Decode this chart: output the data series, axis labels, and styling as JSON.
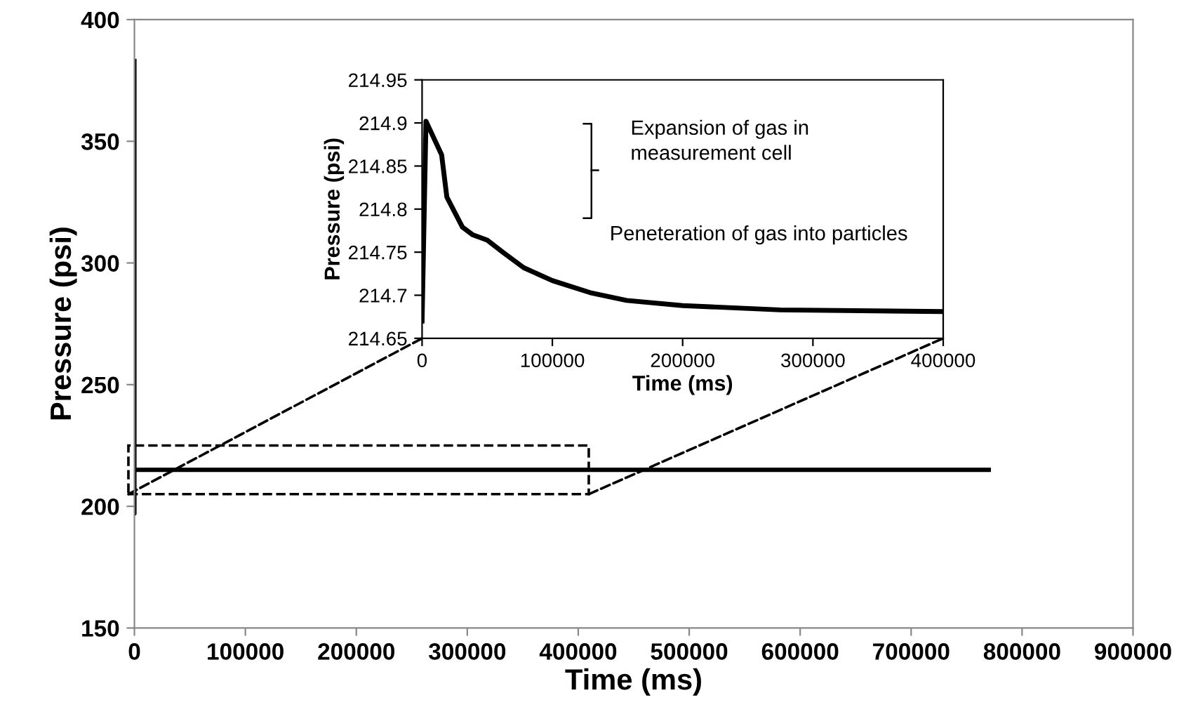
{
  "chart_data": [
    {
      "type": "line",
      "xlabel": "Time (ms)",
      "ylabel": "Pressure (psi)",
      "xlim": [
        0,
        900000
      ],
      "ylim": [
        150,
        400
      ],
      "xticks": [
        0,
        100000,
        200000,
        300000,
        400000,
        500000,
        600000,
        700000,
        800000,
        900000
      ],
      "yticks": [
        150,
        200,
        250,
        300,
        350,
        400
      ],
      "grid": false,
      "legend": false,
      "series": [
        {
          "color": "#000000",
          "x": [
            0,
            0,
            0,
            2000,
            770000
          ],
          "values": [
            383,
            197,
            215,
            215,
            215
          ]
        }
      ]
    },
    {
      "type": "line",
      "xlabel": "Time (ms)",
      "ylabel": "Pressure (psi)",
      "xlim": [
        0,
        400000
      ],
      "ylim": [
        214.65,
        214.95
      ],
      "xticks": [
        0,
        100000,
        200000,
        300000,
        400000
      ],
      "yticks": [
        214.65,
        214.7,
        214.75,
        214.8,
        214.85,
        214.9,
        214.95
      ],
      "grid": false,
      "legend": false,
      "annotations": [
        "Expansion of gas in\nmeasurement cell",
        "Peneteration of gas into particles"
      ],
      "series": [
        {
          "color": "#000000",
          "x": [
            0,
            3000,
            15000,
            19000,
            31000,
            39000,
            50000,
            62000,
            78000,
            100000,
            129000,
            157000,
            200000,
            275000,
            400000
          ],
          "values": [
            214.67,
            214.902,
            214.863,
            214.814,
            214.779,
            214.77,
            214.764,
            214.75,
            214.732,
            214.717,
            214.703,
            214.694,
            214.688,
            214.683,
            214.681
          ]
        }
      ]
    }
  ]
}
